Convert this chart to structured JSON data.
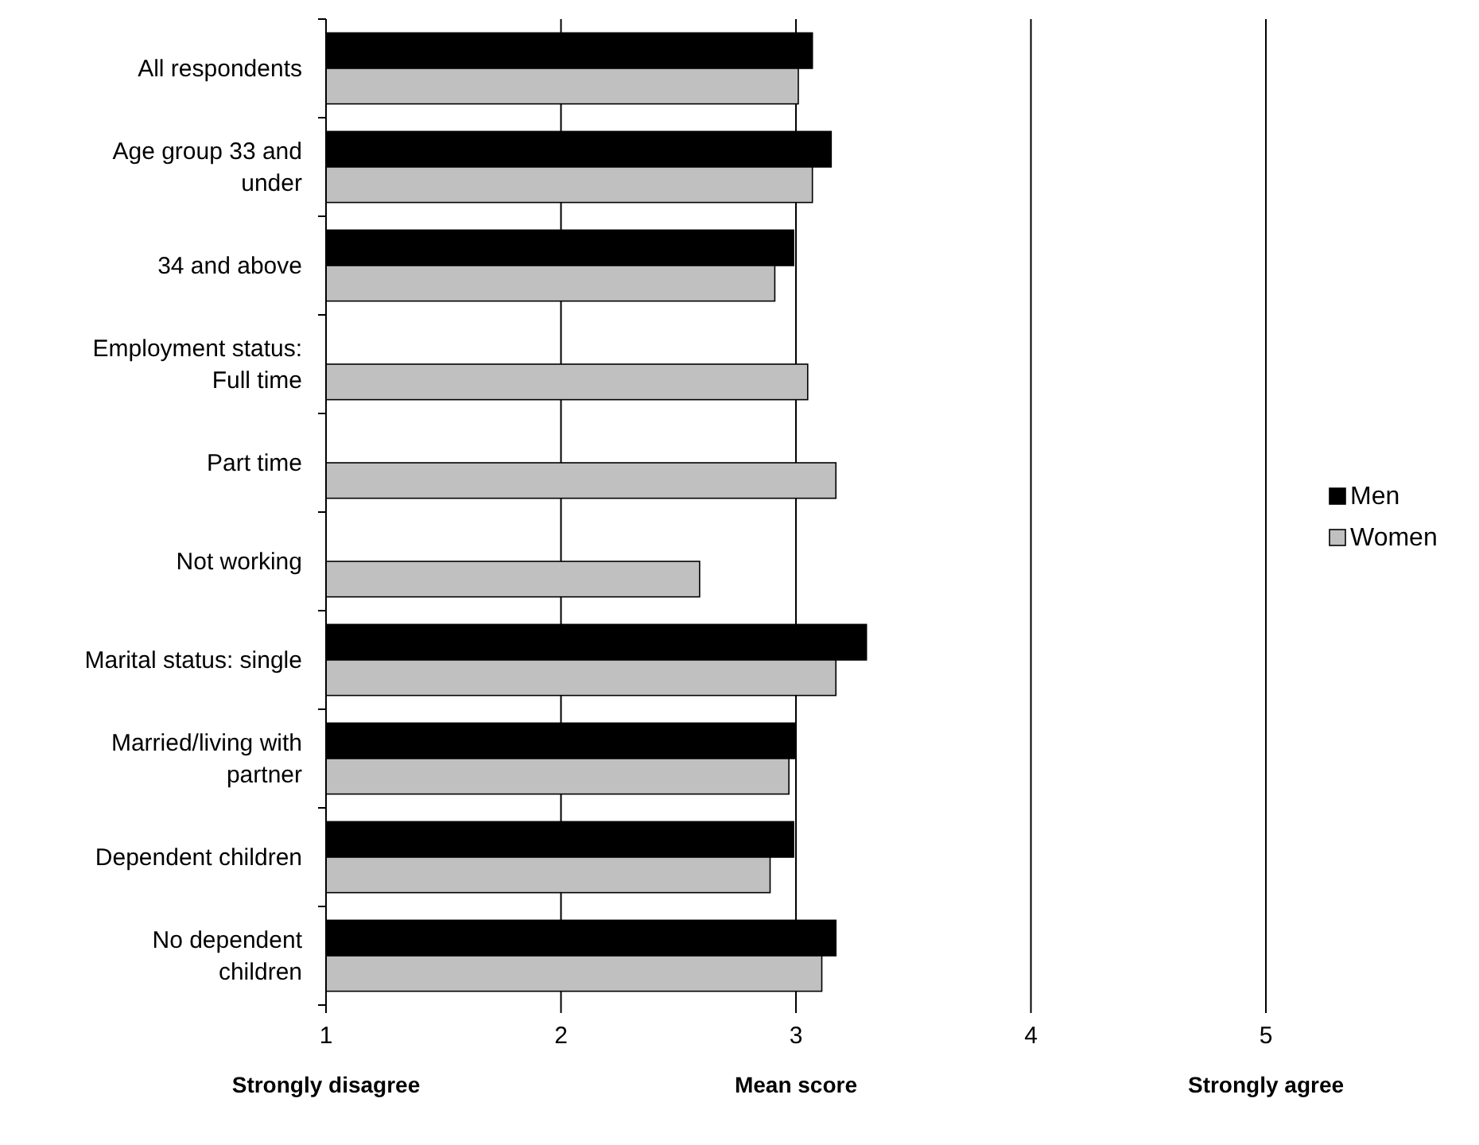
{
  "chart_data": {
    "type": "bar",
    "orientation": "horizontal",
    "xlabel": "Mean score",
    "categories": [
      "All respondents",
      "Age group 33 and under",
      "34 and above",
      "Employment status: Full time",
      "Part time",
      "Not working",
      "Marital status: single",
      "Married/living with partner",
      "Dependent children",
      "No dependent children"
    ],
    "series": [
      {
        "name": "Men",
        "color": "#000000",
        "values": [
          3.07,
          3.15,
          2.99,
          null,
          null,
          null,
          3.3,
          3.0,
          2.99,
          3.17
        ]
      },
      {
        "name": "Women",
        "color": "#c0c0c0",
        "values": [
          3.01,
          3.07,
          2.91,
          3.05,
          3.17,
          2.59,
          3.17,
          2.97,
          2.89,
          3.11
        ]
      }
    ],
    "xlim": [
      1,
      5
    ],
    "xticks": [
      1,
      2,
      3,
      4,
      5
    ],
    "grid": "x",
    "legend": "right",
    "annotations": [
      "Strongly disagree",
      "Strongly agree"
    ]
  }
}
